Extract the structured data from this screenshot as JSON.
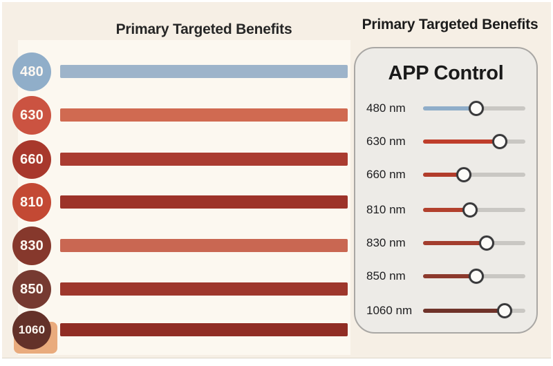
{
  "page": {
    "background": "#ffffff",
    "canvas_color": "#f6efe5",
    "plot_color": "#fcf8f0"
  },
  "left_chart": {
    "title": "Primary Targeted Benefits",
    "accent_square_color": "#e9ab7d",
    "rows": [
      {
        "wavelength": "480",
        "circle_color": "#90aec9",
        "bar_color": "#9db4ca"
      },
      {
        "wavelength": "630",
        "circle_color": "#cb5341",
        "bar_color": "#d06a51"
      },
      {
        "wavelength": "660",
        "circle_color": "#a8382c",
        "bar_color": "#aa3c31"
      },
      {
        "wavelength": "810",
        "circle_color": "#c34934",
        "bar_color": "#9d332a"
      },
      {
        "wavelength": "830",
        "circle_color": "#86382c",
        "bar_color": "#c96752"
      },
      {
        "wavelength": "850",
        "circle_color": "#763a31",
        "bar_color": "#9e372c"
      },
      {
        "wavelength": "1060",
        "circle_color": "#633129",
        "bar_color": "#902d24"
      }
    ]
  },
  "right_panel": {
    "title": "Primary Targeted Benefits",
    "heading": "APP Control",
    "panel_bg": "#edebe7",
    "panel_border": "#a9a7a4",
    "track_color": "#c9c7c3",
    "sliders": [
      {
        "label": "480 nm",
        "value_pct": 52,
        "fill_color": "#8fadc9"
      },
      {
        "label": "630 nm",
        "value_pct": 75,
        "fill_color": "#bf3e2b"
      },
      {
        "label": "660 nm",
        "value_pct": 40,
        "fill_color": "#b23c2b"
      },
      {
        "label": "810 nm",
        "value_pct": 46,
        "fill_color": "#b2402d"
      },
      {
        "label": "830 nm",
        "value_pct": 62,
        "fill_color": "#a33d2e"
      },
      {
        "label": "850 nm",
        "value_pct": 52,
        "fill_color": "#8c392c"
      },
      {
        "label": "1060 nm",
        "value_pct": 80,
        "fill_color": "#6f332a"
      }
    ]
  },
  "chart_data": {
    "type": "bar",
    "orientation": "horizontal",
    "title": "Primary Targeted Benefits",
    "categories": [
      "480 nm",
      "630 nm",
      "660 nm",
      "810 nm",
      "830 nm",
      "850 nm",
      "1060 nm"
    ],
    "values": [
      100,
      100,
      100,
      100,
      100,
      100,
      100
    ],
    "xlim": [
      0,
      100
    ],
    "grid": false,
    "legend_position": "left-badges",
    "bar_colors": [
      "#9db4ca",
      "#d06a51",
      "#aa3c31",
      "#9d332a",
      "#c96752",
      "#9e372c",
      "#902d24"
    ],
    "slider_values_pct": [
      52,
      75,
      40,
      46,
      62,
      52,
      80
    ]
  }
}
